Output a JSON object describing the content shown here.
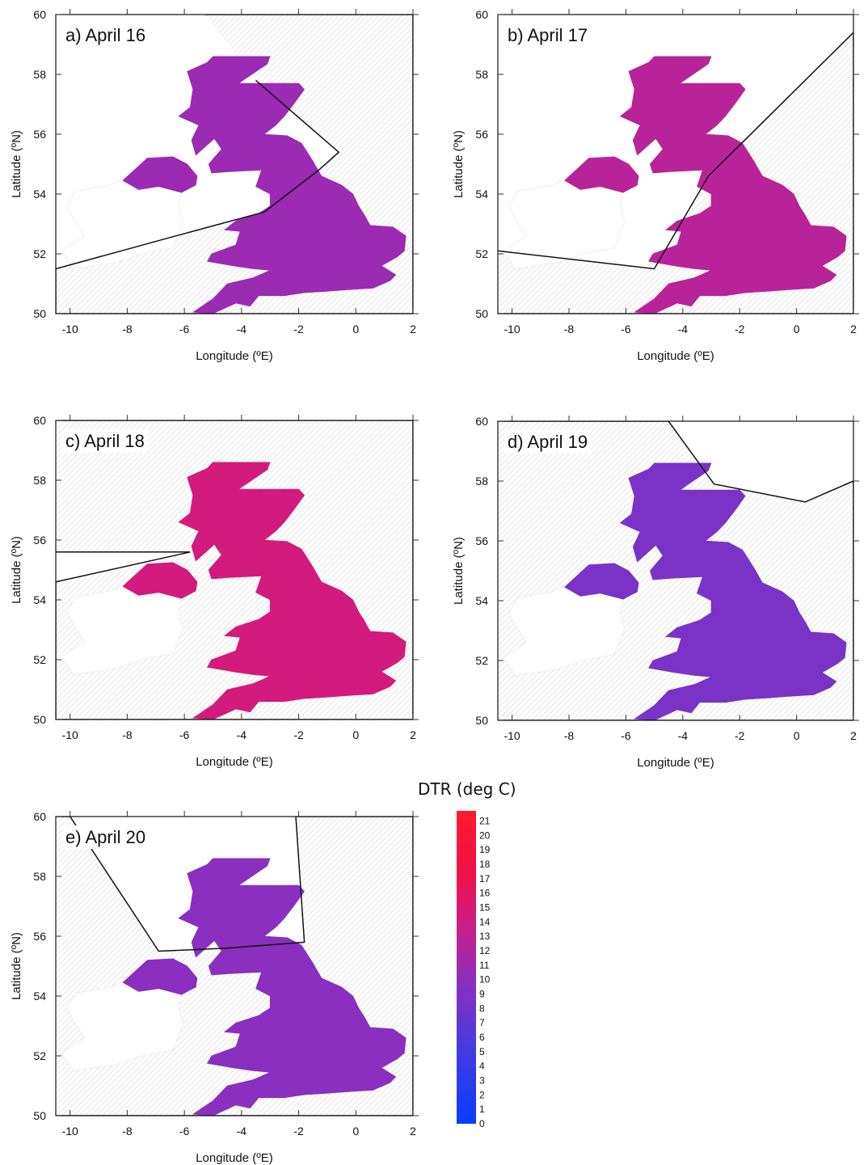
{
  "figure": {
    "xlabel": "Longitude (ºE)",
    "ylabel": "Latitude (ºN)",
    "xticks": [
      -10,
      -8,
      -6,
      -4,
      -2,
      0,
      2
    ],
    "yticks": [
      50,
      52,
      54,
      56,
      58,
      60
    ],
    "xlim": [
      -10.5,
      2
    ],
    "ylim": [
      50,
      60
    ],
    "colors": {
      "low": "#1a3cff",
      "mid": "#8a2fbf",
      "high": "#ff1a3a",
      "land_outside": "#ffffff",
      "hatch": "#c8c8c8"
    }
  },
  "panels": [
    {
      "id": "a",
      "title": "a) April 16",
      "dominant_dtr": 11,
      "boundary": [
        [
          -5.3,
          60
        ],
        [
          2,
          60
        ],
        [
          2,
          50
        ],
        [
          -10.5,
          50
        ],
        [
          -10.5,
          51.5
        ],
        [
          -6.3,
          52.6
        ],
        [
          -3.2,
          53.4
        ],
        [
          -1.3,
          54.8
        ],
        [
          -0.6,
          55.4
        ],
        [
          -3.5,
          57.8
        ]
      ]
    },
    {
      "id": "b",
      "title": "b) April 17",
      "dominant_dtr": 13,
      "boundary": [
        [
          -10.5,
          52.1
        ],
        [
          -5,
          51.5
        ],
        [
          -3.1,
          54.6
        ],
        [
          2,
          59.4
        ],
        [
          2,
          50
        ],
        [
          -10.5,
          50
        ]
      ]
    },
    {
      "id": "c",
      "title": "c) April 18",
      "dominant_dtr": 15,
      "boundary": [
        [
          -10.5,
          60
        ],
        [
          2,
          60
        ],
        [
          2,
          50
        ],
        [
          -10.5,
          50
        ],
        [
          -10.5,
          54.6
        ],
        [
          -5.8,
          55.6
        ],
        [
          -10.5,
          55.6
        ]
      ]
    },
    {
      "id": "d",
      "title": "d) April 19",
      "dominant_dtr": 9,
      "boundary": [
        [
          -10.5,
          60
        ],
        [
          -4.5,
          60
        ],
        [
          -2.9,
          57.9
        ],
        [
          0.3,
          57.3
        ],
        [
          2,
          58
        ],
        [
          2,
          50
        ],
        [
          -10.5,
          50
        ]
      ]
    },
    {
      "id": "e",
      "title": "e) April 20",
      "dominant_dtr": 10,
      "boundary": [
        [
          -10.5,
          60
        ],
        [
          -10,
          60
        ],
        [
          -6.9,
          55.5
        ],
        [
          -4.5,
          55.6
        ],
        [
          -1.8,
          55.8
        ],
        [
          -2.1,
          60
        ],
        [
          2,
          60
        ],
        [
          2,
          50
        ],
        [
          -10.5,
          50
        ]
      ]
    }
  ],
  "colorbar": {
    "title": "DTR (deg C)",
    "ticks": [
      "21",
      "20",
      "19",
      "18",
      "17",
      "16",
      "15",
      "14",
      "13",
      "12",
      "11",
      "10",
      "9",
      "8",
      "7",
      "6",
      "5",
      "4",
      "3",
      "2",
      "1",
      "0"
    ],
    "min": 0,
    "max": 21.7
  }
}
